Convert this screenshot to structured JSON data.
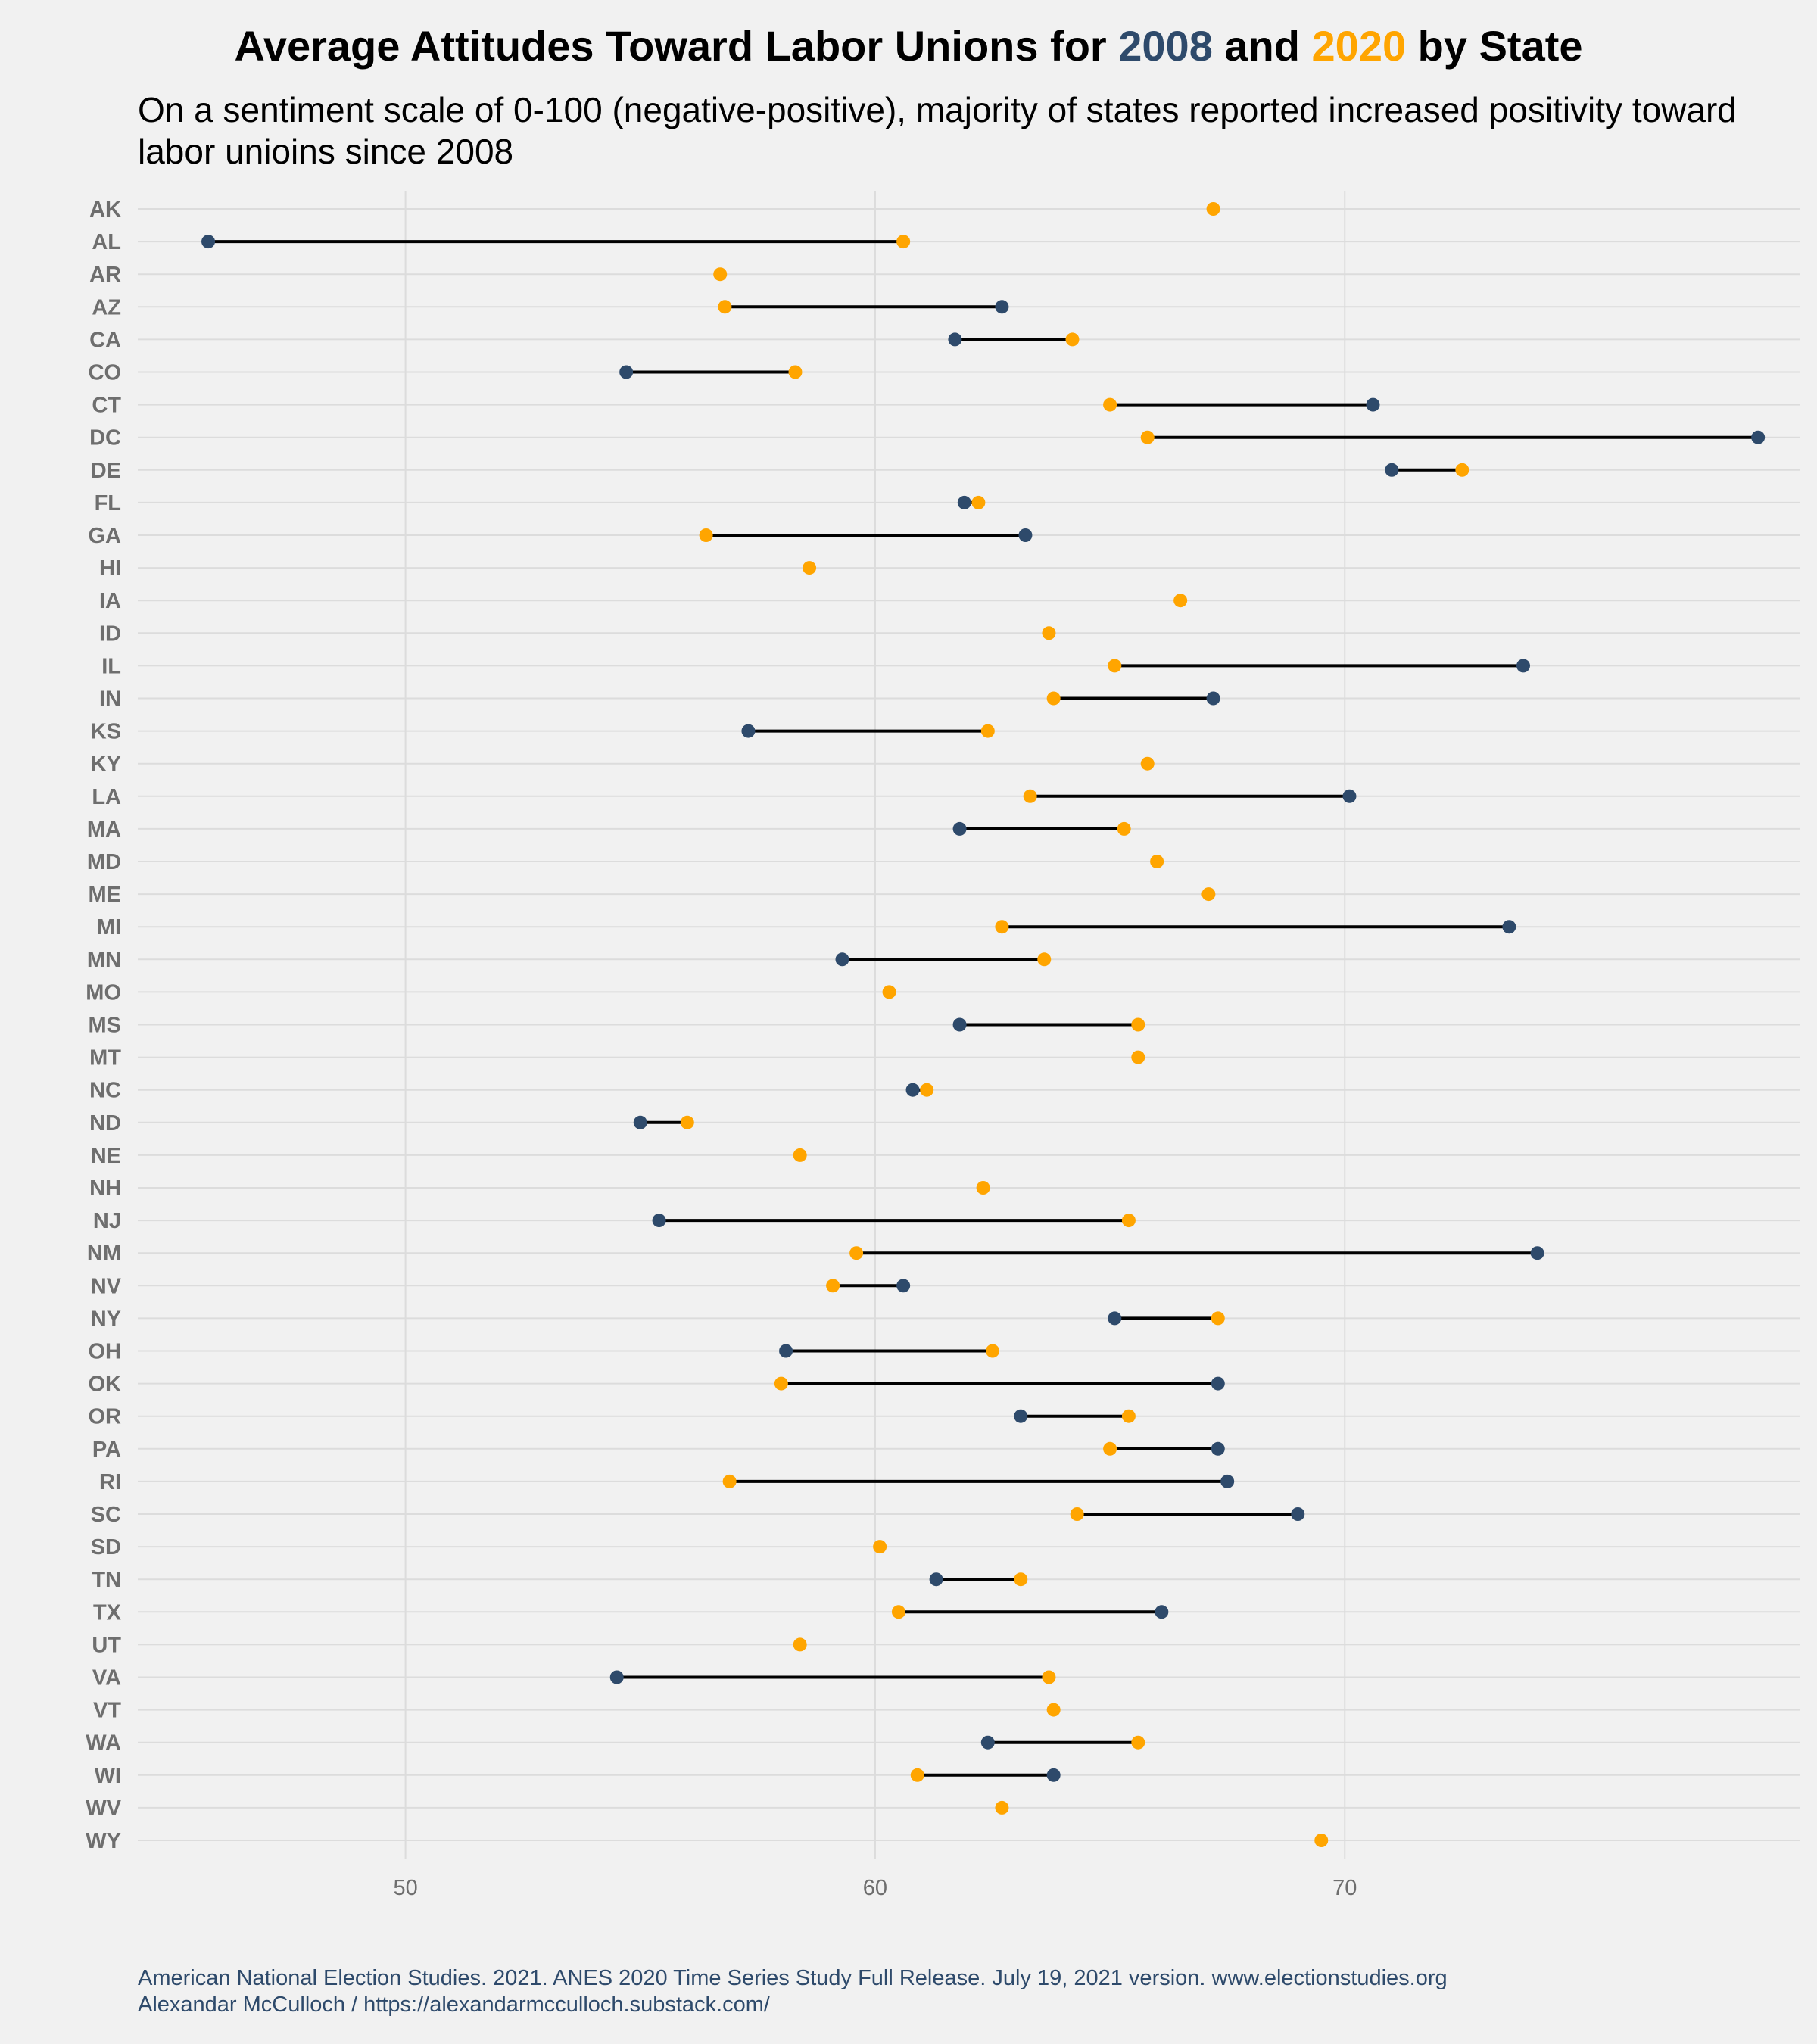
{
  "title": {
    "prefix": "Average Attitudes Toward Labor Unions for ",
    "year1": "2008",
    "mid": " and ",
    "year2": "2020",
    "suffix": " by State"
  },
  "subtitle": "On a sentiment scale of 0-100 (negative-positive), majority of states reported increased positivity toward labor unioins since 2008",
  "caption": {
    "line1": "American National Election Studies. 2021. ANES 2020 Time Series Study Full Release. July 19, 2021 version. www.electionstudies.org",
    "line2": "Alexandar McCulloch / https://alexandarmcculloch.substack.com/"
  },
  "colors": {
    "c2008": "#2e4a6b",
    "c2020": "#ffa500",
    "segment": "#000000",
    "grid": "#dcdcdc",
    "tick": "#6e6e6e"
  },
  "chart_data": {
    "type": "dumbbell",
    "xlim": [
      44.3,
      79.7
    ],
    "xticks": [
      50,
      60,
      70
    ],
    "legend": "title",
    "series": [
      {
        "name": "2008"
      },
      {
        "name": "2020"
      }
    ],
    "rows": [
      {
        "state": "AK",
        "v2008": null,
        "v2020": 67.2
      },
      {
        "state": "AL",
        "v2008": 45.8,
        "v2020": 60.6
      },
      {
        "state": "AR",
        "v2008": null,
        "v2020": 56.7
      },
      {
        "state": "AZ",
        "v2008": 62.7,
        "v2020": 56.8
      },
      {
        "state": "CA",
        "v2008": 61.7,
        "v2020": 64.2
      },
      {
        "state": "CO",
        "v2008": 54.7,
        "v2020": 58.3
      },
      {
        "state": "CT",
        "v2008": 70.6,
        "v2020": 65.0
      },
      {
        "state": "DC",
        "v2008": 78.8,
        "v2020": 65.8
      },
      {
        "state": "DE",
        "v2008": 71.0,
        "v2020": 72.5
      },
      {
        "state": "FL",
        "v2008": 61.9,
        "v2020": 62.2
      },
      {
        "state": "GA",
        "v2008": 63.2,
        "v2020": 56.4
      },
      {
        "state": "HI",
        "v2008": null,
        "v2020": 58.6
      },
      {
        "state": "IA",
        "v2008": null,
        "v2020": 66.5
      },
      {
        "state": "ID",
        "v2008": null,
        "v2020": 63.7
      },
      {
        "state": "IL",
        "v2008": 73.8,
        "v2020": 65.1
      },
      {
        "state": "IN",
        "v2008": 67.2,
        "v2020": 63.8
      },
      {
        "state": "KS",
        "v2008": 57.3,
        "v2020": 62.4
      },
      {
        "state": "KY",
        "v2008": null,
        "v2020": 65.8
      },
      {
        "state": "LA",
        "v2008": 70.1,
        "v2020": 63.3
      },
      {
        "state": "MA",
        "v2008": 61.8,
        "v2020": 65.3
      },
      {
        "state": "MD",
        "v2008": null,
        "v2020": 66.0
      },
      {
        "state": "ME",
        "v2008": null,
        "v2020": 67.1
      },
      {
        "state": "MI",
        "v2008": 73.5,
        "v2020": 62.7
      },
      {
        "state": "MN",
        "v2008": 59.3,
        "v2020": 63.6
      },
      {
        "state": "MO",
        "v2008": null,
        "v2020": 60.3
      },
      {
        "state": "MS",
        "v2008": 61.8,
        "v2020": 65.6
      },
      {
        "state": "MT",
        "v2008": null,
        "v2020": 65.6
      },
      {
        "state": "NC",
        "v2008": 60.8,
        "v2020": 61.1
      },
      {
        "state": "ND",
        "v2008": 55.0,
        "v2020": 56.0
      },
      {
        "state": "NE",
        "v2008": null,
        "v2020": 58.4
      },
      {
        "state": "NH",
        "v2008": null,
        "v2020": 62.3
      },
      {
        "state": "NJ",
        "v2008": 55.4,
        "v2020": 65.4
      },
      {
        "state": "NM",
        "v2008": 74.1,
        "v2020": 59.6
      },
      {
        "state": "NV",
        "v2008": 60.6,
        "v2020": 59.1
      },
      {
        "state": "NY",
        "v2008": 65.1,
        "v2020": 67.3
      },
      {
        "state": "OH",
        "v2008": 58.1,
        "v2020": 62.5
      },
      {
        "state": "OK",
        "v2008": 67.3,
        "v2020": 58.0
      },
      {
        "state": "OR",
        "v2008": 63.1,
        "v2020": 65.4
      },
      {
        "state": "PA",
        "v2008": 67.3,
        "v2020": 65.0
      },
      {
        "state": "RI",
        "v2008": 67.5,
        "v2020": 56.9
      },
      {
        "state": "SC",
        "v2008": 69.0,
        "v2020": 64.3
      },
      {
        "state": "SD",
        "v2008": null,
        "v2020": 60.1
      },
      {
        "state": "TN",
        "v2008": 61.3,
        "v2020": 63.1
      },
      {
        "state": "TX",
        "v2008": 66.1,
        "v2020": 60.5
      },
      {
        "state": "UT",
        "v2008": null,
        "v2020": 58.4
      },
      {
        "state": "VA",
        "v2008": 54.5,
        "v2020": 63.7
      },
      {
        "state": "VT",
        "v2008": null,
        "v2020": 63.8
      },
      {
        "state": "WA",
        "v2008": 62.4,
        "v2020": 65.6
      },
      {
        "state": "WI",
        "v2008": 63.8,
        "v2020": 60.9
      },
      {
        "state": "WV",
        "v2008": null,
        "v2020": 62.7
      },
      {
        "state": "WY",
        "v2008": null,
        "v2020": 69.5
      }
    ]
  }
}
